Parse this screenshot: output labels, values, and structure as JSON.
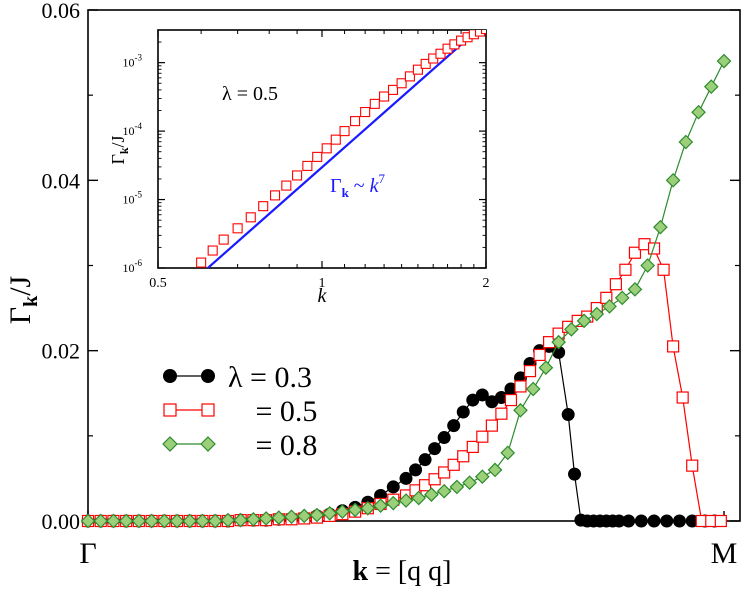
{
  "chart_data": [
    {
      "type": "scatter",
      "title": "",
      "ylabel_main": "Γ",
      "ylabel_sub": "k",
      "ylabel_tail": "/J",
      "xlabel_bold": "k",
      "xlabel_rest": " = [q q]",
      "x_ticks": [
        "Γ",
        "M"
      ],
      "x_range": [
        0,
        1
      ],
      "y_range": [
        0,
        0.06
      ],
      "y_ticks": [
        "0.00",
        "0.02",
        "0.04",
        "0.06"
      ],
      "legend": {
        "placement": "center-left",
        "symbol": "λ",
        "entries": [
          " = 0.3",
          " = 0.5",
          " = 0.8"
        ]
      },
      "series": [
        {
          "name": "λ = 0.3",
          "color": "#000000",
          "marker": "circle",
          "x": [
            0.0,
            0.02,
            0.04,
            0.06,
            0.08,
            0.1,
            0.12,
            0.14,
            0.16,
            0.18,
            0.2,
            0.22,
            0.24,
            0.26,
            0.28,
            0.3,
            0.32,
            0.34,
            0.36,
            0.38,
            0.4,
            0.42,
            0.44,
            0.46,
            0.48,
            0.5,
            0.515,
            0.53,
            0.545,
            0.56,
            0.575,
            0.59,
            0.605,
            0.62,
            0.635,
            0.65,
            0.665,
            0.68,
            0.695,
            0.71,
            0.725,
            0.74,
            0.755,
            0.765,
            0.775,
            0.785,
            0.795,
            0.805,
            0.815,
            0.825,
            0.835,
            0.85,
            0.87,
            0.89,
            0.91,
            0.93,
            0.95,
            0.97,
            0.985
          ],
          "y": [
            0.0,
            0.0,
            0.0,
            0.0,
            0.0,
            0.0,
            0.0,
            0.0,
            0.0,
            0.0,
            0.0,
            0.0,
            0.0001,
            0.0001,
            0.0001,
            0.0002,
            0.0003,
            0.0004,
            0.0006,
            0.0008,
            0.0012,
            0.0016,
            0.0022,
            0.003,
            0.004,
            0.005,
            0.006,
            0.0072,
            0.0085,
            0.0098,
            0.0112,
            0.0128,
            0.0142,
            0.0148,
            0.014,
            0.0145,
            0.0155,
            0.0168,
            0.0185,
            0.02,
            0.0205,
            0.0198,
            0.0125,
            0.0055,
            0.0001,
            0.0,
            0.0,
            0.0,
            0.0,
            0.0,
            0.0,
            0.0,
            0.0,
            0.0,
            0.0,
            0.0,
            0.0,
            0.0,
            0.0
          ]
        },
        {
          "name": "= 0.5",
          "color": "#ff0000",
          "marker": "square",
          "x": [
            0.0,
            0.02,
            0.04,
            0.06,
            0.08,
            0.1,
            0.12,
            0.14,
            0.16,
            0.18,
            0.2,
            0.22,
            0.24,
            0.26,
            0.28,
            0.3,
            0.32,
            0.34,
            0.36,
            0.38,
            0.4,
            0.42,
            0.44,
            0.46,
            0.48,
            0.5,
            0.515,
            0.53,
            0.545,
            0.56,
            0.575,
            0.59,
            0.605,
            0.62,
            0.635,
            0.65,
            0.665,
            0.68,
            0.695,
            0.71,
            0.725,
            0.74,
            0.755,
            0.77,
            0.785,
            0.8,
            0.815,
            0.83,
            0.845,
            0.86,
            0.875,
            0.89,
            0.905,
            0.92,
            0.935,
            0.95,
            0.965,
            0.98,
            0.995
          ],
          "y": [
            0.0,
            0.0,
            0.0,
            0.0,
            0.0,
            0.0,
            0.0,
            0.0,
            0.0,
            0.0,
            0.0,
            0.0,
            0.0001,
            0.0001,
            0.0001,
            0.0002,
            0.0002,
            0.0003,
            0.0004,
            0.0006,
            0.0008,
            0.0011,
            0.0015,
            0.002,
            0.0025,
            0.003,
            0.0036,
            0.0042,
            0.0049,
            0.0057,
            0.0066,
            0.0076,
            0.0087,
            0.0099,
            0.0112,
            0.0126,
            0.0142,
            0.0158,
            0.0176,
            0.0195,
            0.021,
            0.022,
            0.0228,
            0.0235,
            0.024,
            0.025,
            0.0262,
            0.0278,
            0.0295,
            0.0315,
            0.0325,
            0.032,
            0.0295,
            0.0205,
            0.0145,
            0.0065,
            0.0,
            0.0,
            0.0
          ]
        },
        {
          "name": "= 0.8",
          "color": "#2e8b2e",
          "marker": "diamond",
          "x": [
            0.0,
            0.02,
            0.04,
            0.06,
            0.08,
            0.1,
            0.12,
            0.14,
            0.16,
            0.18,
            0.2,
            0.22,
            0.24,
            0.26,
            0.28,
            0.3,
            0.32,
            0.34,
            0.36,
            0.38,
            0.4,
            0.42,
            0.44,
            0.46,
            0.48,
            0.5,
            0.52,
            0.54,
            0.56,
            0.58,
            0.6,
            0.62,
            0.64,
            0.66,
            0.68,
            0.7,
            0.72,
            0.74,
            0.76,
            0.78,
            0.8,
            0.82,
            0.84,
            0.86,
            0.88,
            0.9,
            0.92,
            0.94,
            0.96,
            0.98,
            1.0
          ],
          "y": [
            0.0,
            0.0,
            0.0,
            0.0,
            0.0,
            0.0,
            0.0,
            0.0,
            0.0,
            0.0,
            0.0,
            0.0001,
            0.0001,
            0.0002,
            0.0003,
            0.0004,
            0.0005,
            0.0006,
            0.0007,
            0.0009,
            0.0011,
            0.0013,
            0.0015,
            0.0018,
            0.0021,
            0.0024,
            0.0027,
            0.0031,
            0.0035,
            0.004,
            0.0045,
            0.0052,
            0.006,
            0.008,
            0.013,
            0.0155,
            0.018,
            0.021,
            0.0225,
            0.0235,
            0.0243,
            0.0252,
            0.0262,
            0.0272,
            0.03,
            0.0345,
            0.04,
            0.0445,
            0.048,
            0.051,
            0.054
          ]
        }
      ]
    },
    {
      "type": "scatter",
      "title": "",
      "annotation": "λ = 0.5",
      "ylabel_main": "Γ",
      "ylabel_sub": "k",
      "ylabel_tail": "/J",
      "xlabel": "k",
      "x_scale": "log",
      "y_scale": "log",
      "x_range": [
        0.5,
        2
      ],
      "y_range": [
        1e-06,
        0.003
      ],
      "x_ticks": [
        "0.5",
        "1",
        "2"
      ],
      "y_tick_values": [
        1e-06,
        1e-05,
        0.0001,
        0.001
      ],
      "y_tick_exponents": [
        "-6",
        "-5",
        "-4",
        "-3"
      ],
      "y_tick_base": "10",
      "fit": {
        "label_main": "Γ",
        "label_sub": "k",
        "label_mid": " ~ ",
        "label_var": "k",
        "label_exp": "7",
        "exponent": 7,
        "color": "#1a1aff",
        "x": [
          0.6,
          2.0
        ],
        "y": [
          8.2e-07,
          0.00384
        ]
      },
      "series": [
        {
          "name": "λ = 0.5",
          "color": "#ff0000",
          "marker": "square",
          "x": [
            0.6,
            0.63,
            0.66,
            0.7,
            0.74,
            0.78,
            0.82,
            0.86,
            0.9,
            0.94,
            0.98,
            1.02,
            1.06,
            1.1,
            1.15,
            1.2,
            1.25,
            1.3,
            1.35,
            1.4,
            1.45,
            1.5,
            1.55,
            1.6,
            1.65,
            1.7,
            1.75,
            1.8,
            1.85,
            1.9,
            1.95,
            2.0
          ],
          "y": [
            1.2e-06,
            1.8e-06,
            2.6e-06,
            3.8e-06,
            5.5e-06,
            8e-06,
            1.15e-05,
            1.6e-05,
            2.25e-05,
            3.1e-05,
            4.2e-05,
            5.6e-05,
            7.5e-05,
            0.0001,
            0.00014,
            0.00019,
            0.00025,
            0.00032,
            0.0004,
            0.0005,
            0.00063,
            0.00079,
            0.00096,
            0.00115,
            0.00135,
            0.0016,
            0.00185,
            0.0021,
            0.00235,
            0.0026,
            0.00285,
            0.0031
          ]
        }
      ]
    }
  ]
}
